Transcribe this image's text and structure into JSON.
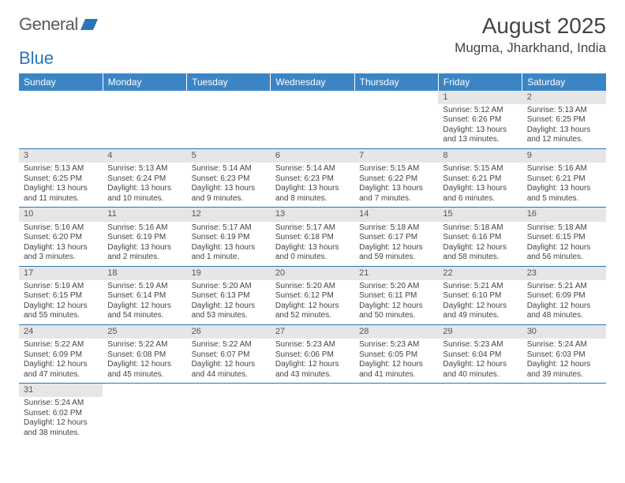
{
  "logo": {
    "general": "General",
    "blue": "Blue"
  },
  "title": "August 2025",
  "location": "Mugma, Jharkhand, India",
  "colors": {
    "header_bg": "#3b85c6",
    "header_text": "#ffffff",
    "daynum_bg": "#e6e6e6",
    "rule": "#2b74b8",
    "logo_blue": "#2b74b8",
    "text": "#444444"
  },
  "weekdays": [
    "Sunday",
    "Monday",
    "Tuesday",
    "Wednesday",
    "Thursday",
    "Friday",
    "Saturday"
  ],
  "weeks": [
    [
      null,
      null,
      null,
      null,
      null,
      {
        "n": "1",
        "sunrise": "Sunrise: 5:12 AM",
        "sunset": "Sunset: 6:26 PM",
        "daylight": "Daylight: 13 hours and 13 minutes."
      },
      {
        "n": "2",
        "sunrise": "Sunrise: 5:13 AM",
        "sunset": "Sunset: 6:25 PM",
        "daylight": "Daylight: 13 hours and 12 minutes."
      }
    ],
    [
      {
        "n": "3",
        "sunrise": "Sunrise: 5:13 AM",
        "sunset": "Sunset: 6:25 PM",
        "daylight": "Daylight: 13 hours and 11 minutes."
      },
      {
        "n": "4",
        "sunrise": "Sunrise: 5:13 AM",
        "sunset": "Sunset: 6:24 PM",
        "daylight": "Daylight: 13 hours and 10 minutes."
      },
      {
        "n": "5",
        "sunrise": "Sunrise: 5:14 AM",
        "sunset": "Sunset: 6:23 PM",
        "daylight": "Daylight: 13 hours and 9 minutes."
      },
      {
        "n": "6",
        "sunrise": "Sunrise: 5:14 AM",
        "sunset": "Sunset: 6:23 PM",
        "daylight": "Daylight: 13 hours and 8 minutes."
      },
      {
        "n": "7",
        "sunrise": "Sunrise: 5:15 AM",
        "sunset": "Sunset: 6:22 PM",
        "daylight": "Daylight: 13 hours and 7 minutes."
      },
      {
        "n": "8",
        "sunrise": "Sunrise: 5:15 AM",
        "sunset": "Sunset: 6:21 PM",
        "daylight": "Daylight: 13 hours and 6 minutes."
      },
      {
        "n": "9",
        "sunrise": "Sunrise: 5:16 AM",
        "sunset": "Sunset: 6:21 PM",
        "daylight": "Daylight: 13 hours and 5 minutes."
      }
    ],
    [
      {
        "n": "10",
        "sunrise": "Sunrise: 5:16 AM",
        "sunset": "Sunset: 6:20 PM",
        "daylight": "Daylight: 13 hours and 3 minutes."
      },
      {
        "n": "11",
        "sunrise": "Sunrise: 5:16 AM",
        "sunset": "Sunset: 6:19 PM",
        "daylight": "Daylight: 13 hours and 2 minutes."
      },
      {
        "n": "12",
        "sunrise": "Sunrise: 5:17 AM",
        "sunset": "Sunset: 6:19 PM",
        "daylight": "Daylight: 13 hours and 1 minute."
      },
      {
        "n": "13",
        "sunrise": "Sunrise: 5:17 AM",
        "sunset": "Sunset: 6:18 PM",
        "daylight": "Daylight: 13 hours and 0 minutes."
      },
      {
        "n": "14",
        "sunrise": "Sunrise: 5:18 AM",
        "sunset": "Sunset: 6:17 PM",
        "daylight": "Daylight: 12 hours and 59 minutes."
      },
      {
        "n": "15",
        "sunrise": "Sunrise: 5:18 AM",
        "sunset": "Sunset: 6:16 PM",
        "daylight": "Daylight: 12 hours and 58 minutes."
      },
      {
        "n": "16",
        "sunrise": "Sunrise: 5:18 AM",
        "sunset": "Sunset: 6:15 PM",
        "daylight": "Daylight: 12 hours and 56 minutes."
      }
    ],
    [
      {
        "n": "17",
        "sunrise": "Sunrise: 5:19 AM",
        "sunset": "Sunset: 6:15 PM",
        "daylight": "Daylight: 12 hours and 55 minutes."
      },
      {
        "n": "18",
        "sunrise": "Sunrise: 5:19 AM",
        "sunset": "Sunset: 6:14 PM",
        "daylight": "Daylight: 12 hours and 54 minutes."
      },
      {
        "n": "19",
        "sunrise": "Sunrise: 5:20 AM",
        "sunset": "Sunset: 6:13 PM",
        "daylight": "Daylight: 12 hours and 53 minutes."
      },
      {
        "n": "20",
        "sunrise": "Sunrise: 5:20 AM",
        "sunset": "Sunset: 6:12 PM",
        "daylight": "Daylight: 12 hours and 52 minutes."
      },
      {
        "n": "21",
        "sunrise": "Sunrise: 5:20 AM",
        "sunset": "Sunset: 6:11 PM",
        "daylight": "Daylight: 12 hours and 50 minutes."
      },
      {
        "n": "22",
        "sunrise": "Sunrise: 5:21 AM",
        "sunset": "Sunset: 6:10 PM",
        "daylight": "Daylight: 12 hours and 49 minutes."
      },
      {
        "n": "23",
        "sunrise": "Sunrise: 5:21 AM",
        "sunset": "Sunset: 6:09 PM",
        "daylight": "Daylight: 12 hours and 48 minutes."
      }
    ],
    [
      {
        "n": "24",
        "sunrise": "Sunrise: 5:22 AM",
        "sunset": "Sunset: 6:09 PM",
        "daylight": "Daylight: 12 hours and 47 minutes."
      },
      {
        "n": "25",
        "sunrise": "Sunrise: 5:22 AM",
        "sunset": "Sunset: 6:08 PM",
        "daylight": "Daylight: 12 hours and 45 minutes."
      },
      {
        "n": "26",
        "sunrise": "Sunrise: 5:22 AM",
        "sunset": "Sunset: 6:07 PM",
        "daylight": "Daylight: 12 hours and 44 minutes."
      },
      {
        "n": "27",
        "sunrise": "Sunrise: 5:23 AM",
        "sunset": "Sunset: 6:06 PM",
        "daylight": "Daylight: 12 hours and 43 minutes."
      },
      {
        "n": "28",
        "sunrise": "Sunrise: 5:23 AM",
        "sunset": "Sunset: 6:05 PM",
        "daylight": "Daylight: 12 hours and 41 minutes."
      },
      {
        "n": "29",
        "sunrise": "Sunrise: 5:23 AM",
        "sunset": "Sunset: 6:04 PM",
        "daylight": "Daylight: 12 hours and 40 minutes."
      },
      {
        "n": "30",
        "sunrise": "Sunrise: 5:24 AM",
        "sunset": "Sunset: 6:03 PM",
        "daylight": "Daylight: 12 hours and 39 minutes."
      }
    ],
    [
      {
        "n": "31",
        "sunrise": "Sunrise: 5:24 AM",
        "sunset": "Sunset: 6:02 PM",
        "daylight": "Daylight: 12 hours and 38 minutes."
      },
      null,
      null,
      null,
      null,
      null,
      null
    ]
  ]
}
